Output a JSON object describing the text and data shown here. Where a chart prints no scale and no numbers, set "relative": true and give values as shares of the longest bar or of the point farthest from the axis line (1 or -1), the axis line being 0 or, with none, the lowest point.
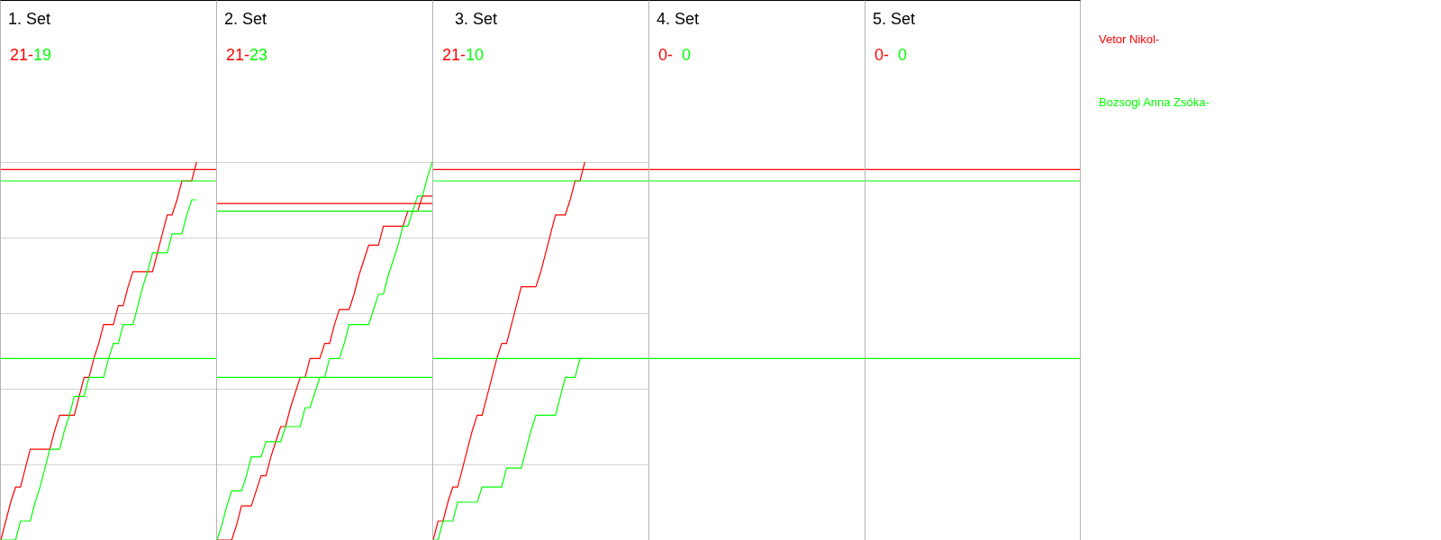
{
  "chart_data": [
    {
      "type": "line",
      "title": "1. Set",
      "annotations": [
        "21-",
        "19"
      ],
      "relative": true,
      "grid": true,
      "categories": [
        null,
        null,
        null,
        null,
        null,
        null,
        null,
        null,
        null,
        null,
        null,
        null,
        null,
        null,
        null,
        null,
        null,
        null,
        null,
        null,
        null,
        null,
        null,
        null,
        null,
        null,
        null,
        null,
        null,
        null,
        null,
        null,
        null,
        null,
        null,
        null,
        null,
        null,
        null,
        null,
        null,
        null,
        null,
        null,
        null
      ],
      "ref_lines": [
        {
          "axis": "y",
          "value": 0.98,
          "color": "#ff0000"
        },
        {
          "axis": "y",
          "value": 0.95,
          "color": "#00ff00"
        },
        {
          "axis": "y",
          "value": 0.48,
          "color": "#00ff00"
        }
      ],
      "series": [
        {
          "name": "Vetor Nikol-",
          "color": "#ff0000",
          "values": [
            0,
            0.05,
            0.1,
            0.14,
            0.14,
            0.19,
            0.24,
            0.24,
            0.24,
            0.24,
            0.24,
            0.29,
            0.33,
            0.33,
            0.33,
            0.33,
            0.38,
            0.43,
            0.43,
            0.48,
            0.52,
            0.57,
            0.57,
            0.57,
            0.62,
            0.62,
            0.67,
            0.71,
            0.71,
            0.71,
            0.71,
            0.71,
            0.76,
            0.81,
            0.86,
            0.86,
            0.9,
            0.95,
            0.95,
            0.95,
            1,
            null,
            null,
            null,
            null
          ]
        },
        {
          "name": "Bozsogi Anna Zsóka-",
          "color": "#00ff00",
          "values": [
            0,
            0,
            0,
            0,
            0.05,
            0.05,
            0.05,
            0.1,
            0.14,
            0.19,
            0.24,
            0.24,
            0.24,
            0.29,
            0.33,
            0.38,
            0.38,
            0.38,
            0.43,
            0.43,
            0.43,
            0.43,
            0.48,
            0.52,
            0.52,
            0.57,
            0.57,
            0.57,
            0.62,
            0.67,
            0.71,
            0.76,
            0.76,
            0.76,
            0.76,
            0.81,
            0.81,
            0.81,
            0.86,
            0.9,
            0.9,
            null,
            null,
            null,
            null
          ]
        }
      ]
    },
    {
      "type": "line",
      "title": "2. Set",
      "annotations": [
        "21-",
        "23"
      ],
      "relative": true,
      "grid": true,
      "categories": [
        null,
        null,
        null,
        null,
        null,
        null,
        null,
        null,
        null,
        null,
        null,
        null,
        null,
        null,
        null,
        null,
        null,
        null,
        null,
        null,
        null,
        null,
        null,
        null,
        null,
        null,
        null,
        null,
        null,
        null,
        null,
        null,
        null,
        null,
        null,
        null,
        null,
        null,
        null,
        null,
        null,
        null,
        null,
        null,
        null
      ],
      "ref_lines": [
        {
          "axis": "y",
          "value": 0.89,
          "color": "#ff0000"
        },
        {
          "axis": "y",
          "value": 0.87,
          "color": "#00ff00"
        },
        {
          "axis": "y",
          "value": 0.43,
          "color": "#00ff00"
        }
      ],
      "series": [
        {
          "color": "#ff0000",
          "values": [
            0,
            0,
            0,
            0,
            0.04,
            0.09,
            0.09,
            0.09,
            0.13,
            0.17,
            0.17,
            0.22,
            0.26,
            0.3,
            0.3,
            0.35,
            0.39,
            0.43,
            0.43,
            0.48,
            0.48,
            0.48,
            0.52,
            0.52,
            0.57,
            0.61,
            0.61,
            0.61,
            0.65,
            0.7,
            0.74,
            0.78,
            0.78,
            0.78,
            0.83,
            0.83,
            0.83,
            0.83,
            0.83,
            0.87,
            0.87,
            0.87,
            0.91,
            0.91,
            0.91
          ]
        },
        {
          "color": "#00ff00",
          "values": [
            0,
            0.04,
            0.09,
            0.13,
            0.13,
            0.13,
            0.17,
            0.22,
            0.22,
            0.22,
            0.26,
            0.26,
            0.26,
            0.26,
            0.3,
            0.3,
            0.3,
            0.3,
            0.35,
            0.35,
            0.39,
            0.43,
            0.43,
            0.48,
            0.48,
            0.48,
            0.52,
            0.57,
            0.57,
            0.57,
            0.57,
            0.57,
            0.61,
            0.65,
            0.65,
            0.7,
            0.74,
            0.78,
            0.83,
            0.83,
            0.87,
            0.91,
            0.91,
            0.96,
            1
          ]
        }
      ]
    },
    {
      "type": "line",
      "title": "3. Set",
      "annotations": [
        "21-",
        "10"
      ],
      "relative": true,
      "grid": true,
      "categories": [
        null,
        null,
        null,
        null,
        null,
        null,
        null,
        null,
        null,
        null,
        null,
        null,
        null,
        null,
        null,
        null,
        null,
        null,
        null,
        null,
        null,
        null,
        null,
        null,
        null,
        null,
        null,
        null,
        null,
        null,
        null,
        null,
        null,
        null,
        null,
        null,
        null,
        null,
        null,
        null,
        null,
        null,
        null,
        null,
        null
      ],
      "ref_lines": [
        {
          "axis": "y",
          "value": 0.98,
          "color": "#ff0000"
        },
        {
          "axis": "y",
          "value": 0.95,
          "color": "#00ff00"
        },
        {
          "axis": "y",
          "value": 0.48,
          "color": "#00ff00"
        }
      ],
      "series": [
        {
          "color": "#ff0000",
          "values": [
            0,
            0.05,
            0.05,
            0.1,
            0.14,
            0.14,
            0.19,
            0.24,
            0.29,
            0.33,
            0.33,
            0.38,
            0.43,
            0.48,
            0.52,
            0.52,
            0.57,
            0.62,
            0.67,
            0.67,
            0.67,
            0.67,
            0.71,
            0.76,
            0.81,
            0.86,
            0.86,
            0.86,
            0.9,
            0.95,
            0.95,
            1,
            null,
            null,
            null,
            null,
            null,
            null,
            null,
            null,
            null,
            null,
            null,
            null,
            null
          ]
        },
        {
          "color": "#00ff00",
          "values": [
            0,
            0,
            0.05,
            0.05,
            0.05,
            0.1,
            0.1,
            0.1,
            0.1,
            0.1,
            0.14,
            0.14,
            0.14,
            0.14,
            0.14,
            0.19,
            0.19,
            0.19,
            0.19,
            0.24,
            0.29,
            0.33,
            0.33,
            0.33,
            0.33,
            0.33,
            0.38,
            0.43,
            0.43,
            0.43,
            0.48,
            0.48,
            null,
            null,
            null,
            null,
            null,
            null,
            null,
            null,
            null,
            null,
            null,
            null,
            null
          ]
        }
      ]
    },
    {
      "type": "other",
      "title": "4. Set",
      "annotations": [
        "0-",
        "0"
      ]
    },
    {
      "type": "other",
      "title": "5. Set",
      "annotations": [
        "0-",
        "0"
      ]
    }
  ]
}
